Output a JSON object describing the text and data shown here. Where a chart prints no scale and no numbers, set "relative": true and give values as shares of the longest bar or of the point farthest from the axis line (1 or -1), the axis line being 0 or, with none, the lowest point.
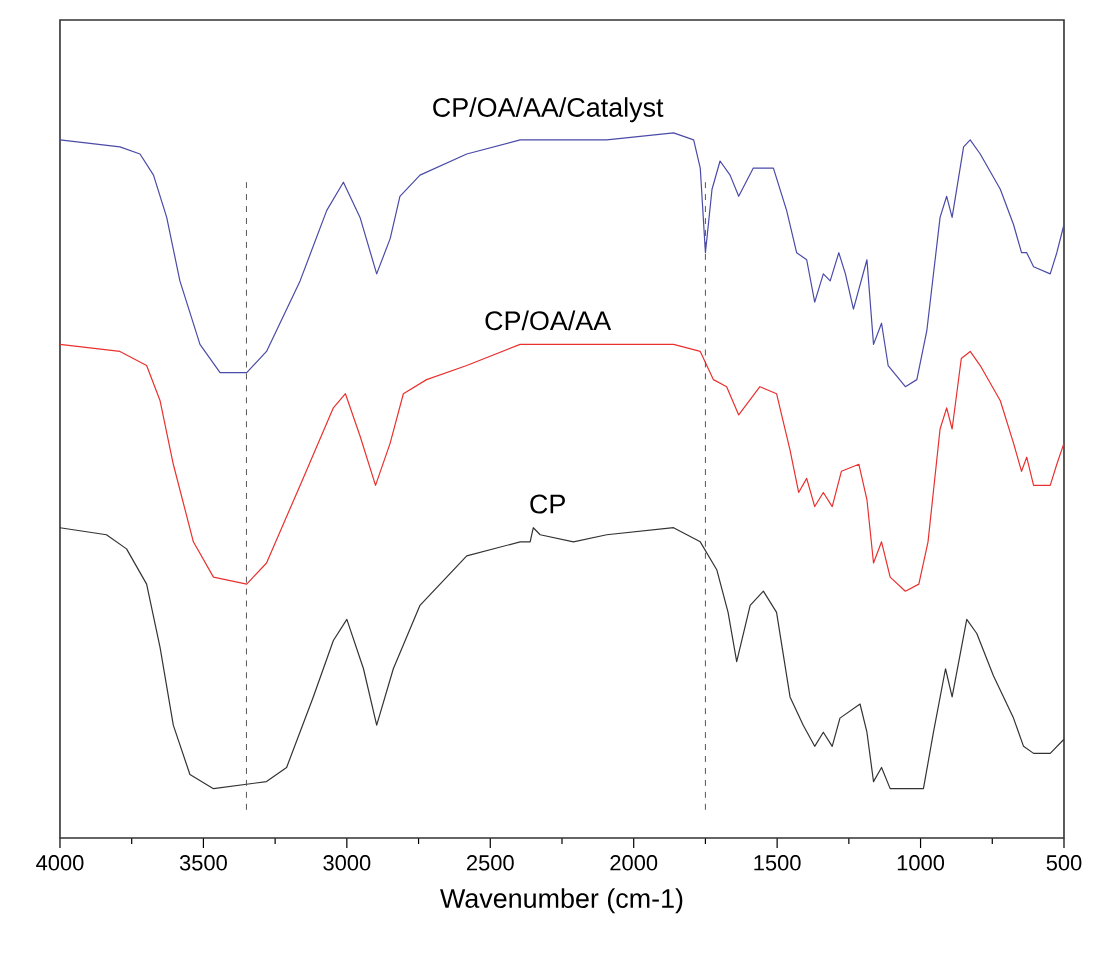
{
  "chart_data": {
    "type": "line",
    "xlabel": "Wavenumber (cm-1)",
    "relative": true,
    "xlim": [
      4000,
      500
    ],
    "xticks": [
      4000,
      3500,
      3000,
      2500,
      2000,
      1500,
      1000,
      500
    ],
    "grid": false,
    "marker": "none",
    "line_style": "solid",
    "ref_lines": [
      {
        "axis": "x",
        "value": 3350,
        "color": "#555555",
        "line_style": "dashed"
      },
      {
        "axis": "x",
        "value": 1750,
        "color": "#555555",
        "line_style": "dashed"
      }
    ],
    "series": [
      {
        "name": "CP/OA/AA/Catalyst",
        "color": "#4a4aa8",
        "x": [
          4000,
          3791,
          3721,
          3674,
          3628,
          3582,
          3512,
          3442,
          3349,
          3280,
          3163,
          3070,
          3012,
          2954,
          2896,
          2849,
          2815,
          2745,
          2582,
          2396,
          2257,
          2094,
          1861,
          1791,
          1768,
          1750,
          1727,
          1699,
          1664,
          1634,
          1583,
          1513,
          1467,
          1432,
          1397,
          1369,
          1339,
          1315,
          1285,
          1262,
          1234,
          1187,
          1164,
          1136,
          1113,
          1053,
          1013,
          978,
          932,
          909,
          890,
          850,
          827,
          792,
          722,
          676,
          648,
          630,
          606,
          548,
          525,
          500
        ],
        "values": [
          0.99,
          0.98,
          0.97,
          0.94,
          0.88,
          0.79,
          0.7,
          0.66,
          0.66,
          0.69,
          0.79,
          0.89,
          0.93,
          0.88,
          0.8,
          0.85,
          0.91,
          0.94,
          0.97,
          0.99,
          0.99,
          0.99,
          1.0,
          0.99,
          0.95,
          0.83,
          0.92,
          0.96,
          0.94,
          0.91,
          0.95,
          0.95,
          0.89,
          0.83,
          0.82,
          0.76,
          0.8,
          0.79,
          0.83,
          0.8,
          0.75,
          0.82,
          0.7,
          0.73,
          0.67,
          0.64,
          0.65,
          0.72,
          0.88,
          0.91,
          0.88,
          0.98,
          0.99,
          0.97,
          0.92,
          0.87,
          0.83,
          0.83,
          0.81,
          0.8,
          0.83,
          0.87
        ]
      },
      {
        "name": "CP/OA/AA",
        "color": "#e8312f",
        "x": [
          4000,
          3791,
          3698,
          3651,
          3605,
          3535,
          3465,
          3349,
          3280,
          3163,
          3047,
          3005,
          2954,
          2900,
          2849,
          2803,
          2722,
          2582,
          2396,
          2094,
          1861,
          1768,
          1722,
          1676,
          1634,
          1560,
          1502,
          1455,
          1425,
          1397,
          1369,
          1339,
          1308,
          1276,
          1215,
          1187,
          1164,
          1136,
          1106,
          1053,
          1006,
          974,
          932,
          909,
          890,
          858,
          827,
          792,
          722,
          676,
          648,
          630,
          606,
          548,
          525,
          500
        ],
        "values": [
          0.7,
          0.69,
          0.67,
          0.62,
          0.53,
          0.42,
          0.37,
          0.36,
          0.39,
          0.5,
          0.61,
          0.63,
          0.57,
          0.5,
          0.56,
          0.63,
          0.65,
          0.67,
          0.7,
          0.7,
          0.7,
          0.69,
          0.65,
          0.64,
          0.6,
          0.64,
          0.63,
          0.55,
          0.49,
          0.51,
          0.47,
          0.49,
          0.47,
          0.52,
          0.53,
          0.48,
          0.39,
          0.42,
          0.37,
          0.35,
          0.36,
          0.42,
          0.58,
          0.61,
          0.58,
          0.68,
          0.69,
          0.67,
          0.62,
          0.56,
          0.52,
          0.54,
          0.5,
          0.5,
          0.53,
          0.56
        ]
      },
      {
        "name": "CP",
        "color": "#333333",
        "x": [
          4000,
          3838,
          3768,
          3698,
          3651,
          3605,
          3547,
          3465,
          3280,
          3210,
          3117,
          3047,
          3000,
          2942,
          2896,
          2838,
          2745,
          2582,
          2396,
          2361,
          2350,
          2326,
          2210,
          2094,
          1861,
          1768,
          1710,
          1671,
          1641,
          1594,
          1548,
          1502,
          1455,
          1409,
          1369,
          1339,
          1308,
          1281,
          1211,
          1187,
          1164,
          1136,
          1106,
          990,
          955,
          913,
          890,
          839,
          804,
          746,
          676,
          641,
          606,
          548,
          500
        ],
        "values": [
          0.44,
          0.43,
          0.41,
          0.36,
          0.27,
          0.16,
          0.09,
          0.07,
          0.08,
          0.1,
          0.2,
          0.28,
          0.31,
          0.24,
          0.16,
          0.24,
          0.33,
          0.4,
          0.42,
          0.42,
          0.44,
          0.43,
          0.42,
          0.43,
          0.44,
          0.42,
          0.38,
          0.32,
          0.25,
          0.33,
          0.35,
          0.32,
          0.2,
          0.16,
          0.13,
          0.15,
          0.13,
          0.17,
          0.19,
          0.15,
          0.08,
          0.1,
          0.07,
          0.07,
          0.15,
          0.24,
          0.2,
          0.31,
          0.29,
          0.23,
          0.17,
          0.13,
          0.12,
          0.12,
          0.14
        ]
      }
    ]
  }
}
